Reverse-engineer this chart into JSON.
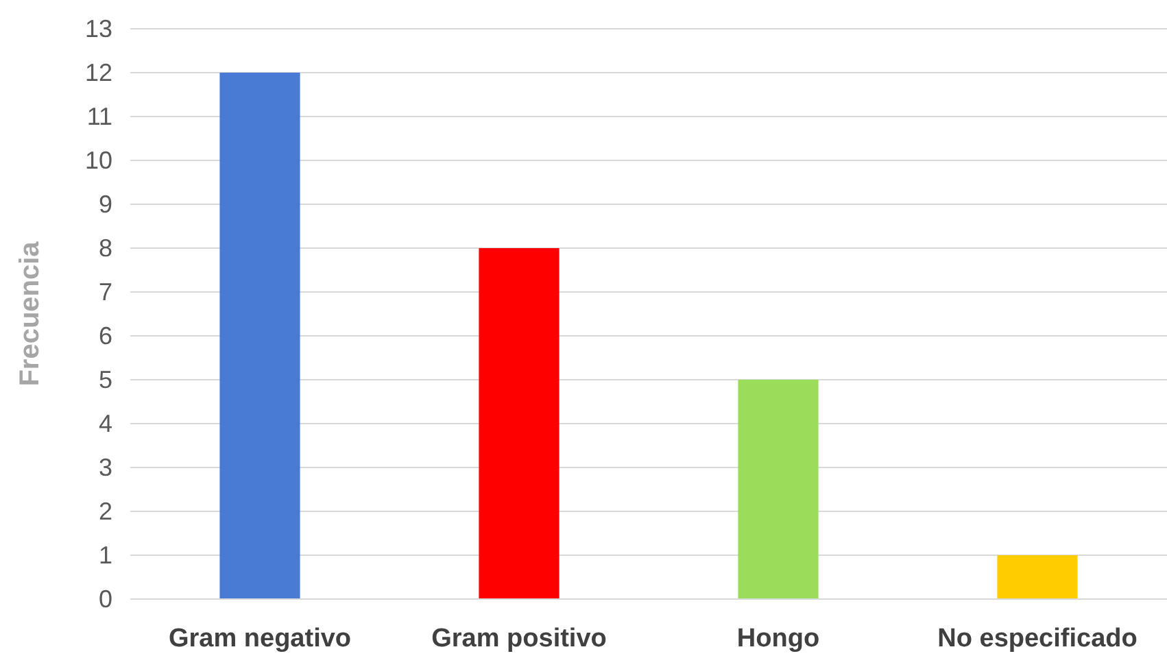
{
  "chart_data": {
    "type": "bar",
    "ylabel": "Frecuencia",
    "categories": [
      "Gram negativo",
      "Gram positivo",
      "Hongo",
      "No especificado"
    ],
    "values": [
      12,
      8,
      5,
      1
    ],
    "colors": [
      "#4a7bd4",
      "#ff0000",
      "#9bdc5a",
      "#ffcc00"
    ],
    "ylim": [
      0,
      13
    ],
    "yticks": [
      0,
      1,
      2,
      3,
      4,
      5,
      6,
      7,
      8,
      9,
      10,
      11,
      12,
      13
    ],
    "grid": "y"
  }
}
